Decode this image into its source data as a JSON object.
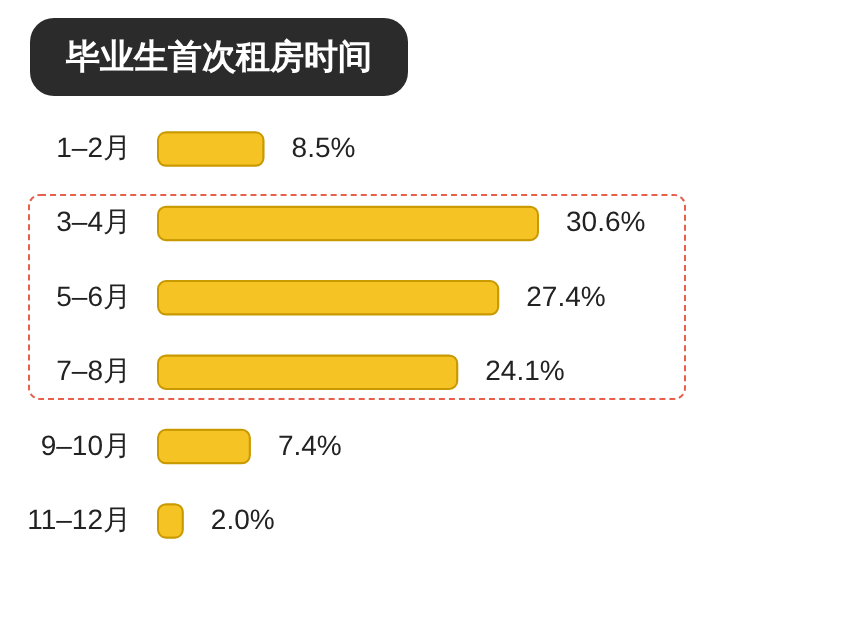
{
  "chart_data": {
    "type": "bar",
    "orientation": "horizontal",
    "title": "毕业生首次租房时间",
    "categories": [
      "1–2月",
      "3–4月",
      "5–6月",
      "7–8月",
      "9–10月",
      "11–12月"
    ],
    "values": [
      8.5,
      30.6,
      27.4,
      24.1,
      7.4,
      2.0
    ],
    "value_labels": [
      "8.5%",
      "30.6%",
      "27.4%",
      "24.1%",
      "7.4%",
      "2.0%"
    ],
    "color": "#f6c324"
  }
}
